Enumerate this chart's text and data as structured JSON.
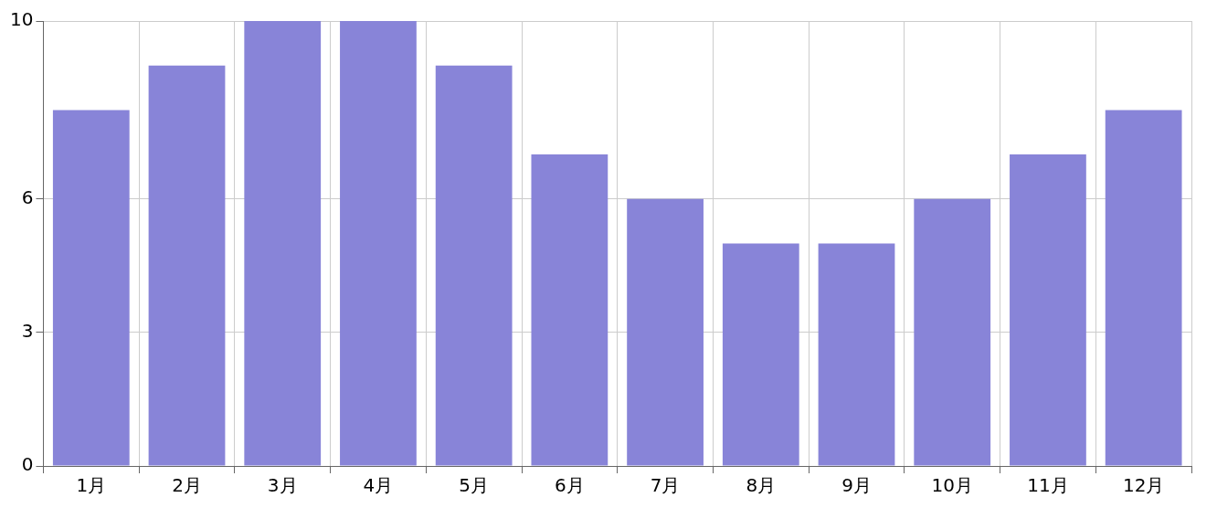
{
  "chart_data": {
    "type": "bar",
    "categories": [
      "1月",
      "2月",
      "3月",
      "4月",
      "5月",
      "6月",
      "7月",
      "8月",
      "9月",
      "10月",
      "11月",
      "12月"
    ],
    "values": [
      8,
      9,
      10,
      10,
      9,
      7,
      6,
      5,
      5,
      6,
      7,
      8
    ],
    "color": "#8884d8",
    "ylim": [
      0,
      10
    ],
    "yticks": [
      0,
      3,
      6,
      10
    ],
    "grid": true,
    "legend": false
  }
}
